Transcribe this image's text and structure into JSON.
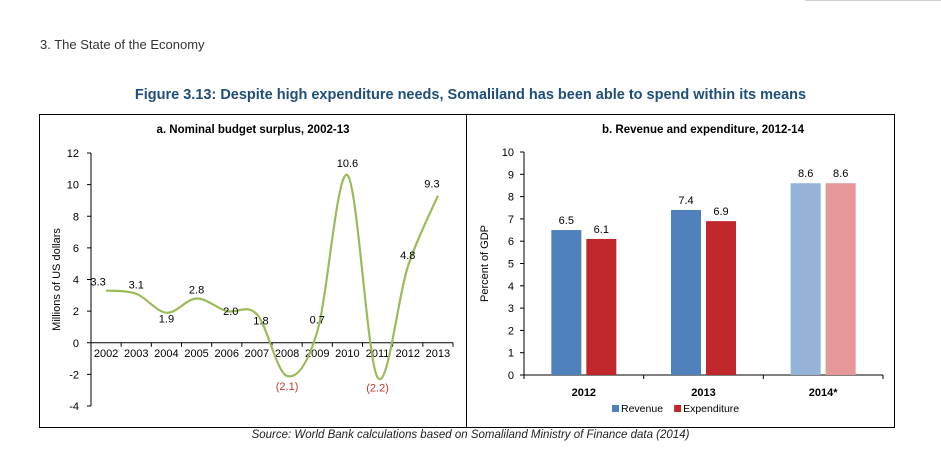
{
  "page": {
    "section_heading": "3. The State of the Economy",
    "figure_title": "Figure 3.13: Despite high expenditure needs, Somaliland has been able to spend within its means",
    "source_note": "Source: World Bank calculations based on Somaliland Ministry of Finance data (2014)"
  },
  "chart_data": [
    {
      "type": "line",
      "title": "a. Nominal budget surplus, 2002-13",
      "ylabel": "Millions of US dollars",
      "xlabel": "",
      "x": [
        "2002",
        "2003",
        "2004",
        "2005",
        "2006",
        "2007",
        "2008",
        "2009",
        "2010",
        "2011",
        "2012",
        "2013"
      ],
      "values": [
        3.3,
        3.1,
        1.9,
        2.8,
        2.0,
        1.8,
        -2.1,
        0.7,
        10.6,
        -2.2,
        4.8,
        9.3
      ],
      "data_labels": [
        "3.3",
        "3.1",
        "1.9",
        "2.8",
        "2.0",
        "1.8",
        "(2.1)",
        "0.7",
        "10.6",
        "(2.2)",
        "4.8",
        "9.3"
      ],
      "yticks": [
        "12",
        "10",
        "8",
        "6",
        "4",
        "2",
        "0",
        "-2",
        "-4"
      ],
      "ylim": [
        -4,
        12
      ],
      "grid": false,
      "colors": {
        "line": "#9bbb59",
        "negative_label": "#c0392b"
      }
    },
    {
      "type": "bar",
      "title": "b. Revenue and expenditure, 2012-14",
      "ylabel": "Percent of GDP",
      "xlabel": "",
      "categories": [
        "2012",
        "2013",
        "2014*"
      ],
      "series": [
        {
          "name": "Revenue",
          "values": [
            6.5,
            7.4,
            8.6
          ],
          "labels": [
            "6.5",
            "7.4",
            "8.6"
          ]
        },
        {
          "name": "Expenditure",
          "values": [
            6.1,
            6.9,
            8.6
          ],
          "labels": [
            "6.1",
            "6.9",
            "8.6"
          ]
        }
      ],
      "yticks": [
        "10",
        "9",
        "8",
        "7",
        "6",
        "5",
        "4",
        "3",
        "2",
        "1",
        "0"
      ],
      "ylim": [
        0,
        10
      ],
      "grid": false,
      "legend_position": "bottom",
      "colors": {
        "revenue": "#4f81bd",
        "expenditure": "#c0272d",
        "revenue_projected": "#95b3d7",
        "expenditure_projected": "#e6979a"
      }
    }
  ]
}
